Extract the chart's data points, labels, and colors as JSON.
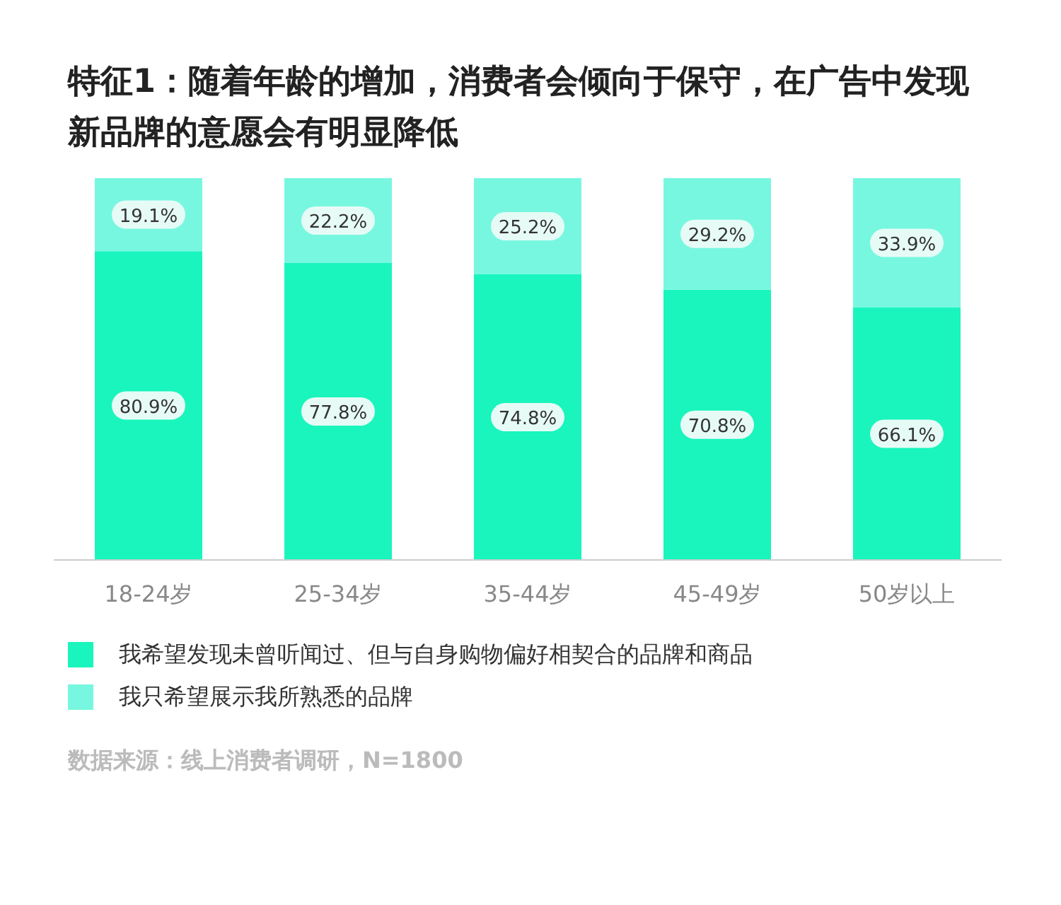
{
  "chart_data": {
    "type": "bar",
    "title": "特征1：随着年龄的增加，消费者会倾向于保守，在广告中发现新品牌的意愿会有明显降低",
    "categories": [
      "18-24岁",
      "25-34岁",
      "35-44岁",
      "45-49岁",
      "50岁以上"
    ],
    "stacked": true,
    "legend": "bottom",
    "series": [
      {
        "name": "我希望发现未曾听闻过、但与自身购物偏好相契合的品牌和商品",
        "color": "#19f5bd",
        "values": [
          80.9,
          77.8,
          74.8,
          70.8,
          66.1
        ],
        "value_labels": [
          "80.9%",
          "77.8%",
          "74.8%",
          "70.8%",
          "66.1%"
        ]
      },
      {
        "name": "我只希望展示我所熟悉的品牌",
        "color": "#78f7e0",
        "values": [
          19.1,
          22.2,
          25.2,
          29.2,
          33.9
        ],
        "value_labels": [
          "19.1%",
          "22.2%",
          "25.2%",
          "29.2%",
          "33.9%"
        ]
      }
    ],
    "annotations": [
      "数据来源：线上消费者调研，N=1800"
    ]
  }
}
